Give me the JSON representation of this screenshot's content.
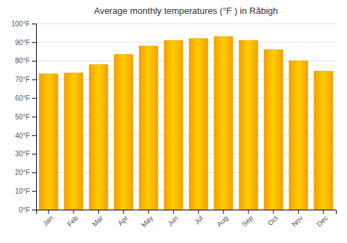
{
  "chart_data": {
    "type": "bar",
    "title": "Average monthly temperatures (°F ) in Rā̈bigh",
    "categories": [
      "Jan",
      "Feb",
      "Mar",
      "Apr",
      "May",
      "Jun",
      "Jul",
      "Aug",
      "Sep",
      "Oct",
      "Nov",
      "Dec"
    ],
    "values": [
      73,
      73.5,
      78,
      83.5,
      88,
      91,
      92,
      93,
      91,
      86,
      80,
      74.5
    ],
    "color": "#F5A000",
    "ylim": [
      0,
      100
    ],
    "yticks": [
      {
        "value": 0,
        "label": "0°F"
      },
      {
        "value": 10,
        "label": "10°F"
      },
      {
        "value": 20,
        "label": "20°F"
      },
      {
        "value": 30,
        "label": "30°F"
      },
      {
        "value": 40,
        "label": "40°F"
      },
      {
        "value": 50,
        "label": "50°F"
      },
      {
        "value": 60,
        "label": "60°F"
      },
      {
        "value": 70,
        "label": "70°F"
      },
      {
        "value": 80,
        "label": "80°F"
      },
      {
        "value": 90,
        "label": "90°F"
      },
      {
        "value": 100,
        "label": "100°F"
      }
    ],
    "grid": true
  }
}
